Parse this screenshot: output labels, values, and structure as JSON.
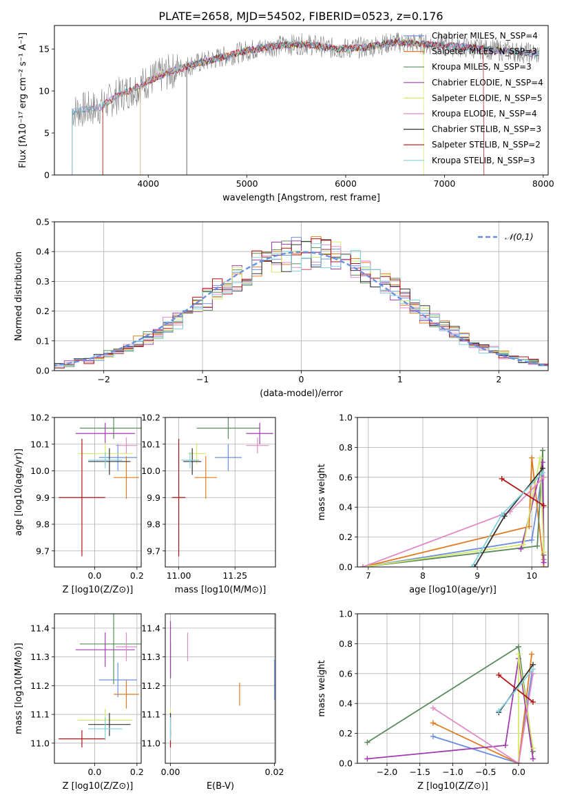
{
  "colors": {
    "blue": "#6a8fe0",
    "orange": "#e07a1f",
    "green": "#5a8a5a",
    "magenta": "#a03ab0",
    "yellow": "#d6e86a",
    "pink": "#e08ac8",
    "black": "#333333",
    "red": "#b01010",
    "cyan": "#7fd0e0",
    "olive": "#a08a2a",
    "gray": "#7f7f7f",
    "grid": "#b0b0b0"
  },
  "chart_data": [
    {
      "type": "line",
      "title": "PLATE=2658, MJD=54502, FIBERID=0523, z=0.176",
      "xlabel": "wavelength [Angstrom, rest frame]",
      "ylabel": "Flux [fλ10⁻¹⁷ erg cm⁻² s⁻¹ A⁻¹]",
      "xlim": [
        3050,
        8050
      ],
      "ylim": [
        0,
        17.8
      ],
      "xticks": [
        "4000",
        "5000",
        "6000",
        "7000",
        "8000"
      ],
      "yticks": [
        "0",
        "5",
        "10",
        "15"
      ],
      "grid": false,
      "legend_position": "top-right",
      "legend": [
        "Chabrier MILES, N_SSP=4",
        "Salpeter MILES, N_SSP=3",
        "Kroupa MILES, N_SSP=3",
        "Chabrier ELODIE, N_SSP=4",
        "Salpeter ELODIE, N_SSP=5",
        "Kroupa ELODIE, N_SSP=4",
        "Chabrier STELIB, N_SSP=3",
        "Salpeter STELIB, N_SSP=2",
        "Kroupa STELIB, N_SSP=3"
      ],
      "continuum": [
        [
          3230,
          7.6
        ],
        [
          3500,
          8.0
        ],
        [
          3700,
          9.5
        ],
        [
          3900,
          10.5
        ],
        [
          4000,
          11.2
        ],
        [
          4200,
          12.2
        ],
        [
          4400,
          13.0
        ],
        [
          4600,
          13.6
        ],
        [
          4800,
          14.2
        ],
        [
          5000,
          14.8
        ],
        [
          5300,
          15.4
        ],
        [
          5600,
          15.6
        ],
        [
          5900,
          15.0
        ],
        [
          6200,
          15.2
        ],
        [
          6500,
          15.8
        ],
        [
          6800,
          15.6
        ],
        [
          7100,
          15.3
        ],
        [
          7400,
          15.0
        ],
        [
          7600,
          14.8
        ],
        [
          7960,
          14.4
        ]
      ]
    },
    {
      "type": "histogram",
      "xlabel": "(data-model)/error",
      "ylabel": "Normed distribution",
      "xlim": [
        -2.5,
        2.5
      ],
      "ylim": [
        0,
        0.5
      ],
      "xticks": [
        "−2",
        "−1",
        "0",
        "1",
        "2"
      ],
      "yticks": [
        "0.0",
        "0.1",
        "0.2",
        "0.3",
        "0.4",
        "0.5"
      ],
      "grid": true,
      "legend_position": "top-right",
      "legend": [
        "𝒩(0,1)"
      ],
      "bin_width": 0.1
    },
    {
      "type": "scatter",
      "xlabel": "Z [log10(Z/Z⊙)]",
      "ylabel": "age  [log10(age/yr)]",
      "xlim": [
        -0.19,
        0.22
      ],
      "ylim": [
        9.64,
        10.2
      ],
      "xticks": [
        "0.0",
        "0.2"
      ],
      "yticks": [
        "9.7",
        "9.8",
        "9.9",
        "10.0",
        "10.1",
        "10.2"
      ],
      "grid": true,
      "points": [
        {
          "color": "blue",
          "x": 0.11,
          "y": 10.05,
          "xerr": 0.09,
          "yerr": 0.05
        },
        {
          "color": "orange",
          "x": 0.15,
          "y": 9.975,
          "xerr": 0.06,
          "yerr": 0.08
        },
        {
          "color": "green",
          "x": 0.09,
          "y": 10.16,
          "xerr": 0.16,
          "yerr": 0.04
        },
        {
          "color": "magenta",
          "x": 0.05,
          "y": 10.14,
          "xerr": 0.14,
          "yerr": 0.04
        },
        {
          "color": "yellow",
          "x": 0.05,
          "y": 10.065,
          "xerr": 0.13,
          "yerr": 0.04
        },
        {
          "color": "pink",
          "x": 0.15,
          "y": 10.095,
          "xerr": 0.05,
          "yerr": 0.03
        },
        {
          "color": "black",
          "x": 0.07,
          "y": 10.035,
          "xerr": 0.1,
          "yerr": 0.05
        },
        {
          "color": "red",
          "x": -0.06,
          "y": 9.9,
          "xerr": 0.11,
          "yerr": 0.22
        },
        {
          "color": "cyan",
          "x": 0.05,
          "y": 10.04,
          "xerr": 0.08,
          "yerr": 0.03
        }
      ]
    },
    {
      "type": "scatter",
      "xlabel": "mass [log10(M/M⊙)]",
      "xlim": [
        10.94,
        11.43
      ],
      "ylim": [
        9.64,
        10.2
      ],
      "xticks": [
        "11.00",
        "11.25"
      ],
      "yticks": [
        "9.7",
        "9.8",
        "9.9",
        "10.0",
        "10.1",
        "10.2"
      ],
      "grid": true,
      "points": [
        {
          "color": "blue",
          "x": 11.22,
          "y": 10.05,
          "xerr": 0.06,
          "yerr": 0.05
        },
        {
          "color": "orange",
          "x": 11.12,
          "y": 9.975,
          "xerr": 0.05,
          "yerr": 0.08
        },
        {
          "color": "green",
          "x": 11.22,
          "y": 10.16,
          "xerr": 0.14,
          "yerr": 0.04
        },
        {
          "color": "magenta",
          "x": 11.36,
          "y": 10.14,
          "xerr": 0.06,
          "yerr": 0.04
        },
        {
          "color": "yellow",
          "x": 11.08,
          "y": 10.065,
          "xerr": 0.04,
          "yerr": 0.04
        },
        {
          "color": "pink",
          "x": 11.35,
          "y": 10.095,
          "xerr": 0.05,
          "yerr": 0.03
        },
        {
          "color": "black",
          "x": 11.06,
          "y": 10.035,
          "xerr": 0.04,
          "yerr": 0.05
        },
        {
          "color": "red",
          "x": 11.0,
          "y": 9.9,
          "xerr": 0.03,
          "yerr": 0.22
        },
        {
          "color": "cyan",
          "x": 11.05,
          "y": 10.04,
          "xerr": 0.04,
          "yerr": 0.03
        }
      ]
    },
    {
      "type": "line",
      "xlabel": "age  [log10(age/yr)]",
      "ylabel": "mass weight",
      "xlim": [
        6.8,
        10.3
      ],
      "ylim": [
        0,
        1.0
      ],
      "xticks": [
        "7",
        "8",
        "9",
        "10"
      ],
      "yticks": [
        "0.0",
        "0.2",
        "0.4",
        "0.6",
        "0.8",
        "1.0"
      ],
      "grid": true,
      "series": [
        {
          "color": "blue",
          "x": [
            6.9,
            10.0,
            10.18,
            10.22
          ],
          "y": [
            0.0,
            0.18,
            0.6,
            0.05
          ]
        },
        {
          "color": "orange",
          "x": [
            6.9,
            9.95,
            10.0,
            10.22
          ],
          "y": [
            0.0,
            0.27,
            0.73,
            0.0
          ]
        },
        {
          "color": "green",
          "x": [
            6.9,
            10.1,
            10.2,
            10.22
          ],
          "y": [
            0.0,
            0.14,
            0.78,
            0.08
          ]
        },
        {
          "color": "magenta",
          "x": [
            9.8,
            10.2,
            10.22
          ],
          "y": [
            0.12,
            0.7,
            0.03
          ]
        },
        {
          "color": "yellow",
          "x": [
            6.9,
            9.85,
            10.15,
            10.22
          ],
          "y": [
            0.0,
            0.15,
            0.73,
            0.1
          ]
        },
        {
          "color": "pink",
          "x": [
            6.9,
            9.6,
            10.22
          ],
          "y": [
            0.0,
            0.37,
            0.6
          ]
        },
        {
          "color": "black",
          "x": [
            8.95,
            9.5,
            10.2
          ],
          "y": [
            0.0,
            0.34,
            0.66
          ]
        },
        {
          "color": "red",
          "x": [
            9.45,
            10.22
          ],
          "y": [
            0.59,
            0.41
          ]
        },
        {
          "color": "cyan",
          "x": [
            8.9,
            9.45,
            10.2
          ],
          "y": [
            0.0,
            0.35,
            0.63
          ]
        }
      ]
    },
    {
      "type": "scatter",
      "xlabel": "Z [log10(Z/Z⊙)]",
      "ylabel": "mass [log10(M/M⊙)]",
      "xlim": [
        -0.19,
        0.22
      ],
      "ylim": [
        10.93,
        11.45
      ],
      "xticks": [
        "0.0",
        "0.2"
      ],
      "yticks": [
        "11.0",
        "11.1",
        "11.2",
        "11.3",
        "11.4"
      ],
      "grid": true,
      "points": [
        {
          "color": "blue",
          "x": 0.11,
          "y": 11.22,
          "xerr": 0.09,
          "yerr": 0.06
        },
        {
          "color": "orange",
          "x": 0.15,
          "y": 11.17,
          "xerr": 0.06,
          "yerr": 0.05
        },
        {
          "color": "green",
          "x": 0.09,
          "y": 11.345,
          "xerr": 0.16,
          "yerr": 0.14
        },
        {
          "color": "magenta",
          "x": 0.05,
          "y": 11.325,
          "xerr": 0.14,
          "yerr": 0.06
        },
        {
          "color": "yellow",
          "x": 0.05,
          "y": 11.08,
          "xerr": 0.13,
          "yerr": 0.04
        },
        {
          "color": "pink",
          "x": 0.15,
          "y": 11.335,
          "xerr": 0.05,
          "yerr": 0.05
        },
        {
          "color": "black",
          "x": 0.07,
          "y": 11.065,
          "xerr": 0.1,
          "yerr": 0.04
        },
        {
          "color": "red",
          "x": -0.06,
          "y": 11.015,
          "xerr": 0.11,
          "yerr": 0.03
        },
        {
          "color": "cyan",
          "x": 0.05,
          "y": 11.05,
          "xerr": 0.08,
          "yerr": 0.04
        }
      ]
    },
    {
      "type": "scatter",
      "xlabel": "E(B-V)",
      "xlim": [
        -0.001,
        0.0202
      ],
      "ylim": [
        10.93,
        11.45
      ],
      "xticks": [
        "0.00",
        "0.02"
      ],
      "yticks": [
        "11.0",
        "11.1",
        "11.2",
        "11.3",
        "11.4"
      ],
      "grid": true,
      "points": [
        {
          "color": "blue",
          "x": 0.02,
          "y": 11.22,
          "xerr": 0.0,
          "yerr": 0.07
        },
        {
          "color": "orange",
          "x": 0.0133,
          "y": 11.17,
          "xerr": 0.0,
          "yerr": 0.04
        },
        {
          "color": "green",
          "x": 0.0,
          "y": 11.29,
          "xerr": 0.0,
          "yerr": 0.06
        },
        {
          "color": "magenta",
          "x": 0.0,
          "y": 11.325,
          "xerr": 0.0,
          "yerr": 0.1
        },
        {
          "color": "yellow",
          "x": 0.0,
          "y": 11.08,
          "xerr": 0.0,
          "yerr": 0.04
        },
        {
          "color": "pink",
          "x": 0.0033,
          "y": 11.335,
          "xerr": 0.0,
          "yerr": 0.05
        },
        {
          "color": "black",
          "x": 0.0,
          "y": 11.065,
          "xerr": 0.0,
          "yerr": 0.04
        },
        {
          "color": "red",
          "x": 0.0,
          "y": 11.015,
          "xerr": 0.0,
          "yerr": 0.03
        },
        {
          "color": "cyan",
          "x": 0.0,
          "y": 11.05,
          "xerr": 0.0,
          "yerr": 0.04
        }
      ]
    },
    {
      "type": "line",
      "xlabel": "Z [log10(Z/Z⊙)]",
      "ylabel": "mass weight",
      "xlim": [
        -2.45,
        0.45
      ],
      "ylim": [
        0,
        1.0
      ],
      "xticks": [
        "−2.0",
        "−1.5",
        "−1.0",
        "−0.5",
        "0.0"
      ],
      "yticks": [
        "0.0",
        "0.2",
        "0.4",
        "0.6",
        "0.8",
        "1.0"
      ],
      "grid": true,
      "series": [
        {
          "color": "blue",
          "x": [
            -1.3,
            0.0,
            0.2
          ],
          "y": [
            0.18,
            0.0,
            0.6
          ]
        },
        {
          "color": "orange",
          "x": [
            -1.3,
            0.0,
            0.2
          ],
          "y": [
            0.27,
            0.0,
            0.73
          ]
        },
        {
          "color": "green",
          "x": [
            -2.3,
            0.0,
            0.22
          ],
          "y": [
            0.14,
            0.78,
            0.08
          ]
        },
        {
          "color": "magenta",
          "x": [
            -2.3,
            -0.2,
            0.0,
            0.22
          ],
          "y": [
            0.03,
            0.12,
            0.7,
            0.03
          ]
        },
        {
          "color": "yellow",
          "x": [
            0.0,
            0.0,
            0.22
          ],
          "y": [
            0.0,
            0.73,
            0.1
          ]
        },
        {
          "color": "pink",
          "x": [
            -1.3,
            0.0,
            0.22
          ],
          "y": [
            0.37,
            0.0,
            0.6
          ]
        },
        {
          "color": "black",
          "x": [
            -0.3,
            0.22
          ],
          "y": [
            0.34,
            0.66
          ]
        },
        {
          "color": "red",
          "x": [
            -0.3,
            0.22
          ],
          "y": [
            0.59,
            0.41
          ]
        },
        {
          "color": "cyan",
          "x": [
            -0.3,
            0.22
          ],
          "y": [
            0.35,
            0.63
          ]
        }
      ]
    }
  ]
}
